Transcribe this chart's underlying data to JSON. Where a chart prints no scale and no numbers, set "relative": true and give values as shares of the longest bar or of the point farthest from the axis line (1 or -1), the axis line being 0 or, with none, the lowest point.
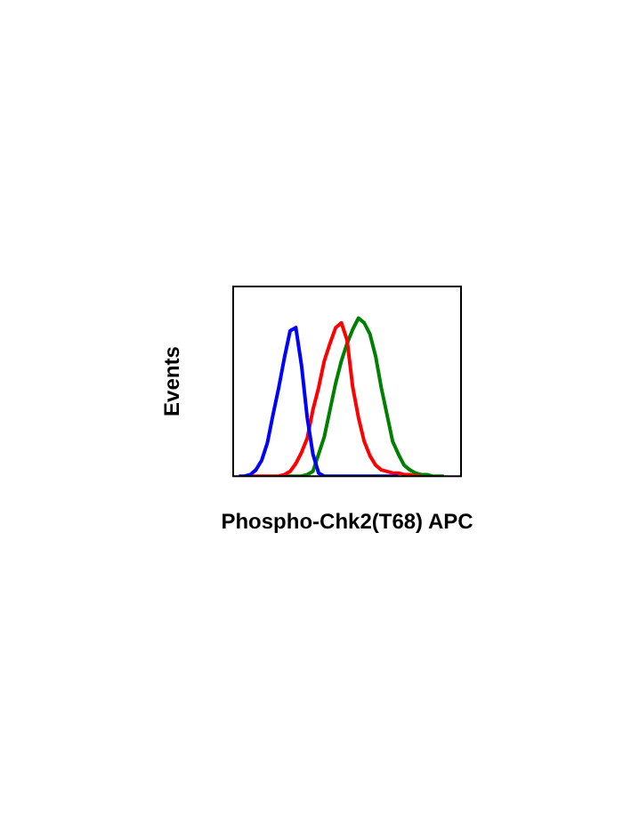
{
  "chart_data": {
    "type": "line",
    "relative": true,
    "xlabel": "Phospho-Chk2(T68) APC",
    "ylabel": "Events",
    "marker": "none",
    "legend": false,
    "categories": [
      null,
      null,
      null,
      null,
      null,
      null,
      null,
      null,
      null,
      null,
      null,
      null,
      null,
      null,
      null,
      null,
      null,
      null,
      null,
      null,
      null,
      null,
      null,
      null,
      null,
      null,
      null,
      null,
      null,
      null,
      null,
      null,
      null,
      null,
      null,
      null,
      null,
      null,
      null,
      null,
      null
    ],
    "series": [
      {
        "color": "#0000ff",
        "values": [
          null,
          0,
          0,
          0.01,
          0.04,
          0.1,
          0.21,
          0.39,
          0.56,
          0.75,
          0.92,
          0.94,
          0.7,
          0.37,
          0.14,
          0.02,
          0,
          0,
          0,
          0,
          0,
          0,
          0,
          0,
          0,
          0,
          0,
          0,
          0,
          0,
          null,
          null,
          null,
          null,
          null,
          null,
          null,
          null,
          null,
          null,
          null
        ]
      },
      {
        "color": "#ff0000",
        "values": [
          null,
          null,
          0,
          0,
          0,
          0,
          0,
          0,
          0,
          0.01,
          0.03,
          0.08,
          0.15,
          0.24,
          0.42,
          0.56,
          0.73,
          0.84,
          0.94,
          0.97,
          0.86,
          0.56,
          0.37,
          0.22,
          0.13,
          0.07,
          0.04,
          0.03,
          0.02,
          0.02,
          0.01,
          0.01,
          0,
          0,
          null,
          null,
          null,
          null,
          null,
          null,
          null
        ]
      },
      {
        "color": "#008000",
        "values": [
          null,
          null,
          null,
          null,
          null,
          null,
          null,
          null,
          0,
          0,
          0,
          0,
          0,
          0.01,
          0.03,
          0.14,
          0.25,
          0.42,
          0.59,
          0.73,
          0.84,
          0.93,
          1,
          0.97,
          0.9,
          0.76,
          0.56,
          0.39,
          0.22,
          0.14,
          0.07,
          0.04,
          0.02,
          0.01,
          0.01,
          0,
          0,
          0,
          null,
          null,
          null
        ]
      }
    ]
  }
}
